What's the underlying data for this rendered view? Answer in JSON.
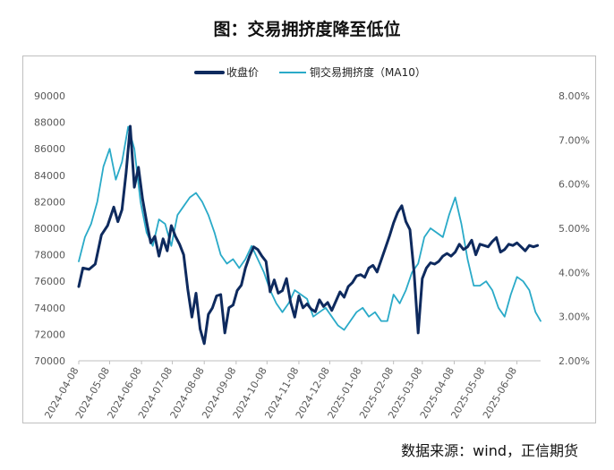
{
  "title": "图：交易拥挤度降至低位",
  "source": "数据来源：wind，正信期货",
  "colors": {
    "price": "#0e2a5e",
    "crowding": "#2aaac8"
  },
  "chart_data": {
    "type": "line",
    "legend": [
      "收盘价",
      "铜交易拥挤度（MA10）"
    ],
    "legend_position": "top-center",
    "grid": false,
    "y_left": {
      "min": 70000,
      "max": 90000,
      "step": 2000,
      "ticks": [
        "70000",
        "72000",
        "74000",
        "76000",
        "78000",
        "80000",
        "82000",
        "84000",
        "86000",
        "88000",
        "90000"
      ]
    },
    "y_right": {
      "min": 2.0,
      "max": 8.0,
      "step": 1.0,
      "ticks": [
        "2.00%",
        "3.00%",
        "4.00%",
        "5.00%",
        "6.00%",
        "7.00%",
        "8.00%"
      ]
    },
    "x_ticks": [
      "2024-04-08",
      "2024-05-08",
      "2024-06-08",
      "2024-07-08",
      "2024-08-08",
      "2024-09-08",
      "2024-10-08",
      "2024-11-08",
      "2024-12-08",
      "2025-01-08",
      "2025-02-08",
      "2025-03-08",
      "2025-04-08",
      "2025-05-08",
      "2025-06-08"
    ],
    "x_start": "2024-04-08",
    "x_end": "2025-07-01",
    "series": [
      {
        "name": "收盘价",
        "axis": "left",
        "x": [
          "2024-04-08",
          "2024-04-12",
          "2024-04-18",
          "2024-04-24",
          "2024-04-30",
          "2024-05-06",
          "2024-05-12",
          "2024-05-16",
          "2024-05-20",
          "2024-05-24",
          "2024-05-28",
          "2024-06-01",
          "2024-06-05",
          "2024-06-09",
          "2024-06-13",
          "2024-06-17",
          "2024-06-21",
          "2024-06-25",
          "2024-06-29",
          "2024-07-03",
          "2024-07-07",
          "2024-07-11",
          "2024-07-15",
          "2024-07-19",
          "2024-07-23",
          "2024-07-27",
          "2024-07-31",
          "2024-08-04",
          "2024-08-08",
          "2024-08-12",
          "2024-08-16",
          "2024-08-20",
          "2024-08-24",
          "2024-08-28",
          "2024-09-01",
          "2024-09-05",
          "2024-09-09",
          "2024-09-13",
          "2024-09-17",
          "2024-09-21",
          "2024-09-25",
          "2024-09-29",
          "2024-10-03",
          "2024-10-07",
          "2024-10-11",
          "2024-10-15",
          "2024-10-19",
          "2024-10-23",
          "2024-10-27",
          "2024-10-31",
          "2024-11-04",
          "2024-11-08",
          "2024-11-12",
          "2024-11-16",
          "2024-11-20",
          "2024-11-24",
          "2024-11-28",
          "2024-12-02",
          "2024-12-06",
          "2024-12-10",
          "2024-12-14",
          "2024-12-18",
          "2024-12-22",
          "2024-12-26",
          "2024-12-30",
          "2025-01-03",
          "2025-01-07",
          "2025-01-11",
          "2025-01-15",
          "2025-01-19",
          "2025-01-23",
          "2025-01-27",
          "2025-01-31",
          "2025-02-04",
          "2025-02-08",
          "2025-02-12",
          "2025-02-16",
          "2025-02-20",
          "2025-02-24",
          "2025-02-28",
          "2025-03-04",
          "2025-03-08",
          "2025-03-12",
          "2025-03-16",
          "2025-03-20",
          "2025-03-24",
          "2025-03-28",
          "2025-04-01",
          "2025-04-05",
          "2025-04-09",
          "2025-04-13",
          "2025-04-17",
          "2025-04-21",
          "2025-04-25",
          "2025-04-29",
          "2025-05-03",
          "2025-05-07",
          "2025-05-11",
          "2025-05-15",
          "2025-05-19",
          "2025-05-23",
          "2025-05-27",
          "2025-05-31",
          "2025-06-04",
          "2025-06-08",
          "2025-06-12",
          "2025-06-16",
          "2025-06-20",
          "2025-06-24",
          "2025-06-28"
        ],
        "y": [
          75600,
          77000,
          76900,
          77300,
          79500,
          80200,
          81600,
          80500,
          81400,
          84200,
          87700,
          83100,
          84600,
          82200,
          80500,
          78900,
          79400,
          77900,
          79200,
          78300,
          80200,
          79400,
          78800,
          78000,
          75400,
          73300,
          75100,
          72400,
          71300,
          73500,
          74000,
          74900,
          75000,
          72100,
          74000,
          74200,
          75300,
          75700,
          77000,
          77900,
          78600,
          78400,
          77900,
          77500,
          75200,
          76100,
          75100,
          75300,
          76200,
          74400,
          73300,
          74900,
          74000,
          74300,
          73900,
          73700,
          74600,
          74100,
          74400,
          73800,
          74500,
          75200,
          74800,
          75600,
          75900,
          76400,
          76500,
          76300,
          77000,
          77200,
          76700,
          77600,
          78500,
          79400,
          80400,
          81200,
          81700,
          80500,
          79900,
          76700,
          72100,
          76200,
          77000,
          77400,
          77300,
          77500,
          77900,
          78100,
          77900,
          78200,
          78800,
          78400,
          78600,
          79100,
          78000,
          78800,
          78700,
          78600,
          79000,
          79300,
          78200,
          78400,
          78800,
          78700,
          78900,
          78600,
          78300,
          78700,
          78600,
          78700
        ]
      },
      {
        "name": "铜交易拥挤度（MA10）",
        "axis": "right",
        "x": [
          "2024-04-08",
          "2024-04-14",
          "2024-04-20",
          "2024-04-26",
          "2024-05-02",
          "2024-05-08",
          "2024-05-14",
          "2024-05-20",
          "2024-05-26",
          "2024-06-01",
          "2024-06-07",
          "2024-06-13",
          "2024-06-19",
          "2024-06-25",
          "2024-07-01",
          "2024-07-07",
          "2024-07-13",
          "2024-07-19",
          "2024-07-25",
          "2024-07-31",
          "2024-08-06",
          "2024-08-12",
          "2024-08-18",
          "2024-08-24",
          "2024-08-30",
          "2024-09-05",
          "2024-09-11",
          "2024-09-17",
          "2024-09-23",
          "2024-09-29",
          "2024-10-05",
          "2024-10-11",
          "2024-10-17",
          "2024-10-23",
          "2024-10-29",
          "2024-11-04",
          "2024-11-10",
          "2024-11-16",
          "2024-11-22",
          "2024-11-28",
          "2024-12-04",
          "2024-12-10",
          "2024-12-16",
          "2024-12-22",
          "2024-12-28",
          "2025-01-03",
          "2025-01-09",
          "2025-01-15",
          "2025-01-21",
          "2025-01-27",
          "2025-02-02",
          "2025-02-08",
          "2025-02-14",
          "2025-02-20",
          "2025-02-26",
          "2025-03-04",
          "2025-03-10",
          "2025-03-16",
          "2025-03-22",
          "2025-03-28",
          "2025-04-03",
          "2025-04-09",
          "2025-04-15",
          "2025-04-21",
          "2025-04-27",
          "2025-05-03",
          "2025-05-09",
          "2025-05-15",
          "2025-05-21",
          "2025-05-27",
          "2025-06-02",
          "2025-06-08",
          "2025-06-14",
          "2025-06-20",
          "2025-06-26",
          "2025-07-01"
        ],
        "y": [
          4.25,
          4.8,
          5.1,
          5.6,
          6.4,
          6.8,
          6.1,
          6.5,
          7.3,
          6.8,
          5.6,
          4.9,
          4.6,
          5.2,
          5.1,
          4.6,
          5.3,
          5.5,
          5.7,
          5.8,
          5.6,
          5.3,
          4.9,
          4.4,
          4.2,
          4.3,
          4.1,
          4.3,
          4.6,
          4.3,
          4.0,
          3.6,
          3.3,
          3.1,
          3.3,
          3.6,
          3.5,
          3.4,
          3.0,
          3.1,
          3.2,
          3.0,
          2.8,
          2.7,
          2.9,
          3.1,
          3.2,
          3.0,
          3.1,
          2.9,
          2.9,
          3.5,
          3.3,
          3.6,
          4.0,
          4.2,
          4.8,
          5.0,
          4.9,
          4.8,
          5.3,
          5.7,
          5.1,
          4.3,
          3.7,
          3.7,
          3.8,
          3.6,
          3.2,
          3.0,
          3.5,
          3.9,
          3.8,
          3.6,
          3.1,
          2.9
        ]
      }
    ]
  }
}
